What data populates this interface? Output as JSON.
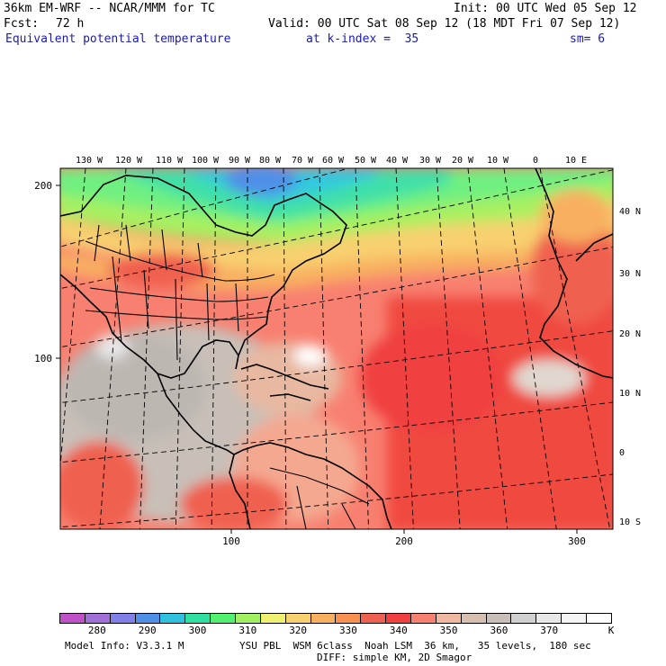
{
  "header": {
    "model": "36km EM-WRF -- NCAR/MMM for TC",
    "init": "Init: 00 UTC Wed 05 Sep 12",
    "fcst_label": "Fcst:",
    "fcst_value": "72 h",
    "valid": "Valid: 00 UTC Sat 08 Sep 12 (18 MDT Fri 07 Sep 12)",
    "field": "Equivalent potential temperature",
    "level": "at k-index =  35",
    "smoothing": "sm= 6"
  },
  "map": {
    "top_lon_labels": [
      "130 W",
      "120 W",
      "110 W",
      "100 W",
      "90 W",
      "80 W",
      "70 W",
      "60 W",
      "50 W",
      "40 W",
      "30 W",
      "20 W",
      "10 W",
      "0",
      "10 E"
    ],
    "right_lat_labels": [
      "40 N",
      "30 N",
      "20 N",
      "10 N",
      "0",
      "10 S"
    ],
    "left_grid_labels": [
      "200",
      "100"
    ],
    "bottom_grid_labels": [
      "100",
      "200",
      "300"
    ]
  },
  "colorbar": {
    "colors": [
      "#c050c8",
      "#a070d8",
      "#8080e8",
      "#5090e8",
      "#30c0e0",
      "#30e0a0",
      "#50f070",
      "#a0f060",
      "#f0f070",
      "#f8d070",
      "#f8b060",
      "#f89050",
      "#f06050",
      "#f04040",
      "#f88070",
      "#f0b8a0",
      "#d8c0b0",
      "#c8c0b8",
      "#d0d0d0",
      "#e8e8e8",
      "#f4f4f4",
      "#ffffff"
    ],
    "labels": [
      "280",
      "290",
      "300",
      "310",
      "320",
      "330",
      "340",
      "350",
      "360",
      "370",
      "K"
    ]
  },
  "footer": {
    "model_info": "Model Info: V3.3.1 M",
    "physics_line1": "YSU PBL  WSM 6class  Noah LSM  36 km,   35 levels,  180 sec",
    "physics_line2": "DIFF: simple KM, 2D Smagor"
  }
}
